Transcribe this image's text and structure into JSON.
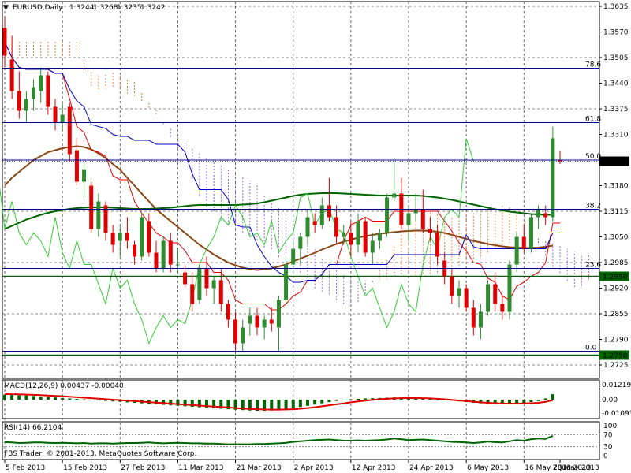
{
  "symbol_header": {
    "symbol": "EURUSD,Daily",
    "open": "1.3244",
    "high": "1.3268",
    "low": "1.3235",
    "close": "1.3242"
  },
  "macd_label": "MACD(12,26,9) 0.00437 -0.00040",
  "rsi_label": "RSI(14) 66.2104",
  "copyright": "FBS Trader, © 2001-2013, MetaQuotes Software Corp.",
  "colors": {
    "bull": "#2e8b2e",
    "bear": "#e00000",
    "ichimoku_orange": "#e87a3a",
    "ichimoku_violet": "#9966cc",
    "tenkan": "#e00000",
    "kijun": "#0000cc",
    "chikou": "#33cc33",
    "ma_fast": "#8b4513",
    "ma_slow": "#006400",
    "fib": "#00008b",
    "hline": "#006400",
    "macd_hist": "#006400",
    "macd_signal": "#e00000",
    "rsi_line": "#006400"
  },
  "chart_data": [
    {
      "type": "candlestick",
      "ylim": [
        1.2725,
        1.3635
      ],
      "y_ticks": [
        "1.3635",
        "1.3570",
        "1.3505",
        "1.3440",
        "1.3375",
        "1.3310",
        "1.3245",
        "1.3180",
        "1.3115",
        "1.3050",
        "1.2985",
        "1.2920",
        "1.2855",
        "1.2790",
        "1.2725"
      ],
      "x_tick_labels": [
        "5 Feb 2013",
        "15 Feb 2013",
        "27 Feb 2013",
        "11 Mar 2013",
        "21 Mar 2013",
        "2 Apr 2013",
        "12 Apr 2013",
        "24 Apr 2013",
        "6 May 2013",
        "16 May 2013",
        "28 May 2013",
        "7 Jun 2013"
      ],
      "x_tick_index": [
        0,
        8,
        16,
        24,
        32,
        40,
        48,
        56,
        64,
        72,
        80,
        88
      ],
      "price_tags": [
        {
          "label": "1.3242",
          "value": 1.3242,
          "style": "current"
        },
        {
          "label": "1.2950",
          "value": 1.295,
          "style": "green"
        },
        {
          "label": "1.2750",
          "value": 1.275,
          "style": "green"
        }
      ],
      "fibonacci": [
        {
          "label": "78.6",
          "value": 1.3478
        },
        {
          "label": "61.8",
          "value": 1.334
        },
        {
          "label": "50.0",
          "value": 1.3245
        },
        {
          "label": "38.2",
          "value": 1.312
        },
        {
          "label": "23.6",
          "value": 1.297
        },
        {
          "label": "0.0",
          "value": 1.276
        }
      ],
      "horizontal_lines": [
        1.295,
        1.275
      ],
      "candles": [
        [
          1.358,
          1.361,
          1.348,
          1.351
        ],
        [
          1.35,
          1.356,
          1.34,
          1.342
        ],
        [
          1.342,
          1.347,
          1.335,
          1.337
        ],
        [
          1.337,
          1.342,
          1.334,
          1.34
        ],
        [
          1.34,
          1.345,
          1.337,
          1.343
        ],
        [
          1.342,
          1.348,
          1.339,
          1.346
        ],
        [
          1.346,
          1.347,
          1.336,
          1.338
        ],
        [
          1.338,
          1.34,
          1.332,
          1.334
        ],
        [
          1.334,
          1.339,
          1.332,
          1.336
        ],
        [
          1.338,
          1.339,
          1.324,
          1.326
        ],
        [
          1.327,
          1.33,
          1.318,
          1.319
        ],
        [
          1.319,
          1.324,
          1.315,
          1.322
        ],
        [
          1.318,
          1.319,
          1.306,
          1.307
        ],
        [
          1.307,
          1.316,
          1.305,
          1.314
        ],
        [
          1.313,
          1.314,
          1.304,
          1.306
        ],
        [
          1.306,
          1.308,
          1.301,
          1.303
        ],
        [
          1.304,
          1.308,
          1.3,
          1.306
        ],
        [
          1.306,
          1.31,
          1.302,
          1.304
        ],
        [
          1.303,
          1.304,
          1.298,
          1.3
        ],
        [
          1.3,
          1.311,
          1.299,
          1.31
        ],
        [
          1.309,
          1.311,
          1.3,
          1.301
        ],
        [
          1.301,
          1.304,
          1.296,
          1.297
        ],
        [
          1.297,
          1.305,
          1.296,
          1.304
        ],
        [
          1.304,
          1.306,
          1.296,
          1.298
        ],
        [
          1.298,
          1.302,
          1.296,
          1.298
        ],
        [
          1.296,
          1.298,
          1.292,
          1.293
        ],
        [
          1.293,
          1.296,
          1.286,
          1.288
        ],
        [
          1.289,
          1.298,
          1.288,
          1.297
        ],
        [
          1.297,
          1.3,
          1.29,
          1.292
        ],
        [
          1.292,
          1.295,
          1.288,
          1.294
        ],
        [
          1.294,
          1.297,
          1.286,
          1.288
        ],
        [
          1.288,
          1.289,
          1.282,
          1.284
        ],
        [
          1.284,
          1.286,
          1.276,
          1.278
        ],
        [
          1.278,
          1.284,
          1.276,
          1.282
        ],
        [
          1.283,
          1.287,
          1.28,
          1.285
        ],
        [
          1.285,
          1.287,
          1.28,
          1.282
        ],
        [
          1.282,
          1.285,
          1.279,
          1.284
        ],
        [
          1.284,
          1.287,
          1.281,
          1.283
        ],
        [
          1.282,
          1.29,
          1.276,
          1.289
        ],
        [
          1.289,
          1.3,
          1.288,
          1.298
        ],
        [
          1.298,
          1.304,
          1.296,
          1.302
        ],
        [
          1.302,
          1.306,
          1.298,
          1.305
        ],
        [
          1.305,
          1.312,
          1.303,
          1.31
        ],
        [
          1.309,
          1.311,
          1.306,
          1.308
        ],
        [
          1.308,
          1.315,
          1.307,
          1.313
        ],
        [
          1.313,
          1.32,
          1.309,
          1.31
        ],
        [
          1.31,
          1.313,
          1.303,
          1.305
        ],
        [
          1.305,
          1.308,
          1.303,
          1.306
        ],
        [
          1.306,
          1.309,
          1.3,
          1.303
        ],
        [
          1.303,
          1.311,
          1.301,
          1.309
        ],
        [
          1.309,
          1.31,
          1.3,
          1.301
        ],
        [
          1.301,
          1.306,
          1.298,
          1.304
        ],
        [
          1.304,
          1.307,
          1.302,
          1.306
        ],
        [
          1.306,
          1.316,
          1.305,
          1.315
        ],
        [
          1.315,
          1.325,
          1.314,
          1.316
        ],
        [
          1.316,
          1.32,
          1.307,
          1.308
        ],
        [
          1.308,
          1.313,
          1.304,
          1.311
        ],
        [
          1.311,
          1.316,
          1.309,
          1.312
        ],
        [
          1.312,
          1.317,
          1.306,
          1.307
        ],
        [
          1.307,
          1.31,
          1.304,
          1.306
        ],
        [
          1.306,
          1.308,
          1.298,
          1.3
        ],
        [
          1.299,
          1.301,
          1.293,
          1.295
        ],
        [
          1.295,
          1.297,
          1.288,
          1.29
        ],
        [
          1.29,
          1.294,
          1.287,
          1.292
        ],
        [
          1.292,
          1.293,
          1.286,
          1.287
        ],
        [
          1.287,
          1.289,
          1.28,
          1.282
        ],
        [
          1.282,
          1.288,
          1.279,
          1.286
        ],
        [
          1.286,
          1.294,
          1.285,
          1.293
        ],
        [
          1.293,
          1.296,
          1.286,
          1.288
        ],
        [
          1.288,
          1.29,
          1.284,
          1.286
        ],
        [
          1.286,
          1.299,
          1.284,
          1.298
        ],
        [
          1.298,
          1.306,
          1.296,
          1.305
        ],
        [
          1.305,
          1.308,
          1.301,
          1.302
        ],
        [
          1.302,
          1.311,
          1.301,
          1.31
        ],
        [
          1.31,
          1.313,
          1.307,
          1.312
        ],
        [
          1.311,
          1.313,
          1.308,
          1.31
        ],
        [
          1.31,
          1.333,
          1.309,
          1.33
        ],
        [
          1.3244,
          1.3268,
          1.3235,
          1.3242
        ]
      ],
      "ma_brown": [
        1.318,
        1.32,
        1.3215,
        1.323,
        1.3245,
        1.3255,
        1.3265,
        1.327,
        1.3275,
        1.3278,
        1.328,
        1.3278,
        1.3272,
        1.3262,
        1.325,
        1.3235,
        1.322,
        1.32,
        1.318,
        1.316,
        1.314,
        1.312,
        1.3105,
        1.309,
        1.3075,
        1.306,
        1.3045,
        1.303,
        1.3018,
        1.3005,
        1.2995,
        1.2985,
        1.2978,
        1.2972,
        1.2968,
        1.2966,
        1.2968,
        1.297,
        1.2975,
        1.298,
        1.2988,
        1.2995,
        1.3002,
        1.301,
        1.3018,
        1.3025,
        1.3032,
        1.3038,
        1.3043,
        1.3048,
        1.3052,
        1.3055,
        1.3058,
        1.306,
        1.3062,
        1.3064,
        1.3065,
        1.3066,
        1.3066,
        1.3065,
        1.3063,
        1.306,
        1.3055,
        1.305,
        1.3045,
        1.304,
        1.3036,
        1.3032,
        1.3029,
        1.3026,
        1.3024,
        1.3023,
        1.3022,
        1.3022,
        1.3023,
        1.3025,
        1.3028
      ],
      "ma_green": [
        1.307,
        1.3078,
        1.3086,
        1.3094,
        1.31,
        1.3106,
        1.3111,
        1.3115,
        1.3118,
        1.3121,
        1.3123,
        1.3124,
        1.3125,
        1.3125,
        1.3125,
        1.3124,
        1.3123,
        1.3122,
        1.3121,
        1.3121,
        1.3121,
        1.3122,
        1.3123,
        1.3124,
        1.3126,
        1.3128,
        1.313,
        1.3131,
        1.3131,
        1.3131,
        1.3131,
        1.3131,
        1.3131,
        1.3132,
        1.3133,
        1.3135,
        1.3138,
        1.3142,
        1.3146,
        1.315,
        1.3154,
        1.3157,
        1.3159,
        1.316,
        1.3161,
        1.3161,
        1.3161,
        1.316,
        1.3159,
        1.3158,
        1.3157,
        1.3156,
        1.3155,
        1.3155,
        1.3155,
        1.3155,
        1.3155,
        1.3155,
        1.3154,
        1.3152,
        1.315,
        1.3147,
        1.3144,
        1.314,
        1.3136,
        1.3132,
        1.3128,
        1.3124,
        1.312,
        1.3117,
        1.3114,
        1.3112,
        1.311,
        1.3108,
        1.3107,
        1.3106,
        1.3106
      ]
    },
    {
      "type": "bar",
      "name": "macd",
      "ylim": [
        -0.01093,
        0.01219
      ],
      "y_ticks": [
        "0.01219",
        "0.00",
        "-0.01093"
      ],
      "values": [
        0.004,
        0.0038,
        0.0036,
        0.0034,
        0.003,
        0.0026,
        0.0022,
        0.0018,
        0.0014,
        0.001,
        0.0006,
        0.0002,
        -0.0002,
        -0.0006,
        -0.001,
        -0.0014,
        -0.0018,
        -0.0022,
        -0.0026,
        -0.003,
        -0.0034,
        -0.0038,
        -0.0042,
        -0.0046,
        -0.005,
        -0.0054,
        -0.0058,
        -0.0062,
        -0.0066,
        -0.007,
        -0.0074,
        -0.0078,
        -0.0082,
        -0.0085,
        -0.0088,
        -0.009,
        -0.009,
        -0.0088,
        -0.0084,
        -0.0078,
        -0.007,
        -0.006,
        -0.005,
        -0.004,
        -0.003,
        -0.002,
        -0.001,
        -0.0004,
        0.0002,
        0.0006,
        0.001,
        0.0012,
        0.0014,
        0.0016,
        0.0018,
        0.0018,
        0.0016,
        0.0014,
        0.001,
        0.0006,
        0.0002,
        -0.0002,
        -0.0008,
        -0.0014,
        -0.002,
        -0.0026,
        -0.003,
        -0.0034,
        -0.0036,
        -0.0036,
        -0.0034,
        -0.003,
        -0.0026,
        -0.002,
        -0.0012,
        0.001,
        0.0044
      ],
      "signal": [
        0.0045,
        0.0044,
        0.0043,
        0.0041,
        0.0039,
        0.0037,
        0.0034,
        0.0031,
        0.0028,
        0.0024,
        0.002,
        0.0016,
        0.0012,
        0.0008,
        0.0004,
        0.0,
        -0.0004,
        -0.0008,
        -0.0012,
        -0.0016,
        -0.002,
        -0.0024,
        -0.0028,
        -0.0032,
        -0.0036,
        -0.004,
        -0.0044,
        -0.0048,
        -0.0052,
        -0.0056,
        -0.006,
        -0.0064,
        -0.0068,
        -0.0072,
        -0.0075,
        -0.0078,
        -0.008,
        -0.0081,
        -0.0081,
        -0.008,
        -0.0078,
        -0.0074,
        -0.0068,
        -0.0062,
        -0.0054,
        -0.0046,
        -0.0038,
        -0.003,
        -0.0022,
        -0.0014,
        -0.0008,
        -0.0002,
        0.0003,
        0.0007,
        0.001,
        0.0012,
        0.0013,
        0.0013,
        0.0012,
        0.001,
        0.0007,
        0.0003,
        -0.0002,
        -0.0007,
        -0.0012,
        -0.0017,
        -0.0022,
        -0.0026,
        -0.0029,
        -0.0031,
        -0.0032,
        -0.0032,
        -0.0031,
        -0.0029,
        -0.0026,
        -0.0018,
        -0.0004
      ]
    },
    {
      "type": "line",
      "name": "rsi",
      "ylim": [
        0,
        100
      ],
      "y_ticks": [
        "100",
        "70",
        "30",
        "0"
      ],
      "values": [
        45,
        44,
        42,
        43,
        44,
        44,
        43,
        42,
        43,
        42,
        41,
        42,
        40,
        41,
        41,
        40,
        41,
        42,
        42,
        43,
        44,
        42,
        41,
        42,
        43,
        42,
        41,
        41,
        40,
        40,
        39,
        38,
        38,
        38,
        38,
        39,
        39,
        40,
        41,
        43,
        46,
        48,
        50,
        52,
        53,
        54,
        52,
        50,
        50,
        51,
        50,
        51,
        52,
        54,
        57,
        55,
        52,
        53,
        54,
        52,
        50,
        48,
        46,
        45,
        44,
        42,
        44,
        47,
        45,
        44,
        48,
        52,
        50,
        55,
        57,
        56,
        66
      ]
    }
  ]
}
